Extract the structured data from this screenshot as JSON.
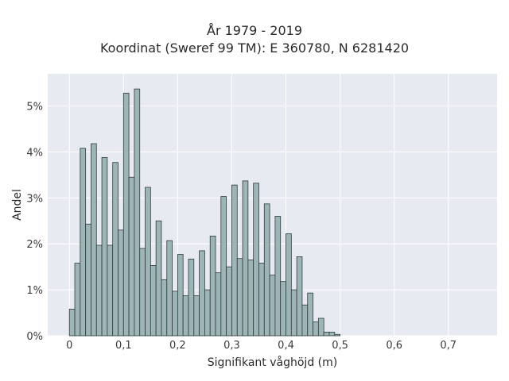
{
  "chart_data": {
    "type": "bar",
    "title": "År 1979 - 2019",
    "subtitle": "Koordinat (Sweref 99 TM): E 360780, N 6281420",
    "xlabel": "Signifikant våghöjd (m)",
    "ylabel": "Andel",
    "x_ticks": [
      "0",
      "0,1",
      "0,2",
      "0,3",
      "0,4",
      "0,5",
      "0,6",
      "0,7"
    ],
    "y_ticks": [
      "0%",
      "1%",
      "2%",
      "3%",
      "4%",
      "5%"
    ],
    "xlim": [
      -0.04,
      0.79
    ],
    "ylim": [
      0,
      5.7
    ],
    "bin_width": 0.01,
    "bin_start": 0.0,
    "values": [
      0.58,
      1.58,
      4.08,
      2.43,
      4.18,
      1.97,
      3.88,
      1.97,
      3.77,
      2.3,
      5.28,
      3.45,
      5.37,
      1.9,
      3.23,
      1.53,
      2.5,
      1.22,
      2.07,
      0.97,
      1.77,
      0.87,
      1.67,
      0.87,
      1.85,
      1.0,
      2.17,
      1.37,
      3.03,
      1.5,
      3.28,
      1.68,
      3.37,
      1.65,
      3.32,
      1.58,
      2.87,
      1.32,
      2.6,
      1.18,
      2.22,
      1.0,
      1.72,
      0.67,
      0.93,
      0.3,
      0.38,
      0.08,
      0.08,
      0.03
    ],
    "bar_color": "#9db5b6",
    "bar_edge": "#2f3b3b",
    "plot_bg": "#e8eaf2",
    "grid": true,
    "legend": false
  }
}
